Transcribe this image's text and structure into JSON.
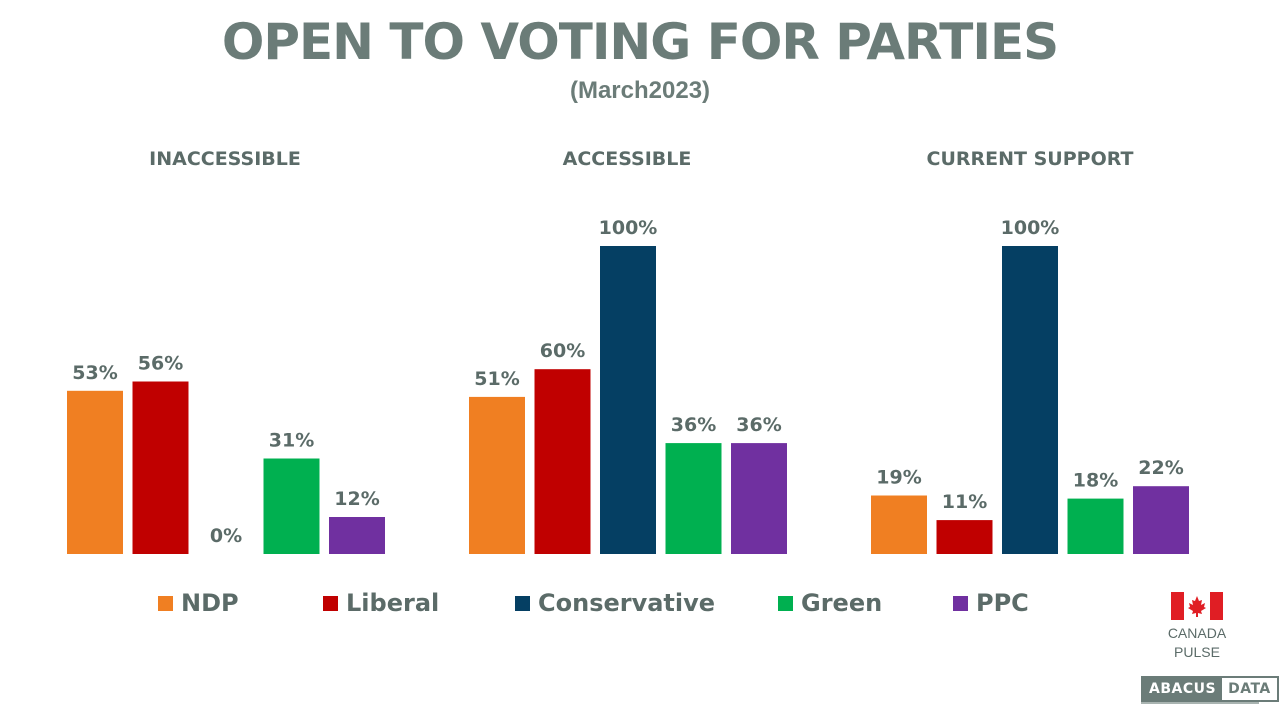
{
  "title": "OPEN TO VOTING FOR PARTIES",
  "subtitle": "(March2023)",
  "chart_data": {
    "type": "bar",
    "ylim": [
      0,
      100
    ],
    "series": [
      {
        "name": "NDP",
        "color": "#f07f22"
      },
      {
        "name": "Liberal",
        "color": "#c00000"
      },
      {
        "name": "Conservative",
        "color": "#053f63"
      },
      {
        "name": "Green",
        "color": "#00b050"
      },
      {
        "name": "PPC",
        "color": "#7030a0"
      }
    ],
    "panels": [
      {
        "title": "INACCESSIBLE",
        "values": [
          53,
          56,
          0,
          31,
          12
        ],
        "labels": [
          "53%",
          "56%",
          "0%",
          "31%",
          "12%"
        ]
      },
      {
        "title": "ACCESSIBLE",
        "values": [
          51,
          60,
          100,
          36,
          36
        ],
        "labels": [
          "51%",
          "60%",
          "100%",
          "36%",
          "36%"
        ]
      },
      {
        "title": "CURRENT SUPPORT",
        "values": [
          19,
          11,
          100,
          18,
          22
        ],
        "labels": [
          "19%",
          "11%",
          "100%",
          "18%",
          "22%"
        ]
      }
    ],
    "legend_position": "bottom"
  },
  "branding": {
    "flag_icon": "canada-flag-icon",
    "canada_pulse_line1": "CANADA",
    "canada_pulse_line2": "PULSE",
    "logo_left": "ABACUS",
    "logo_right": "DATA"
  }
}
